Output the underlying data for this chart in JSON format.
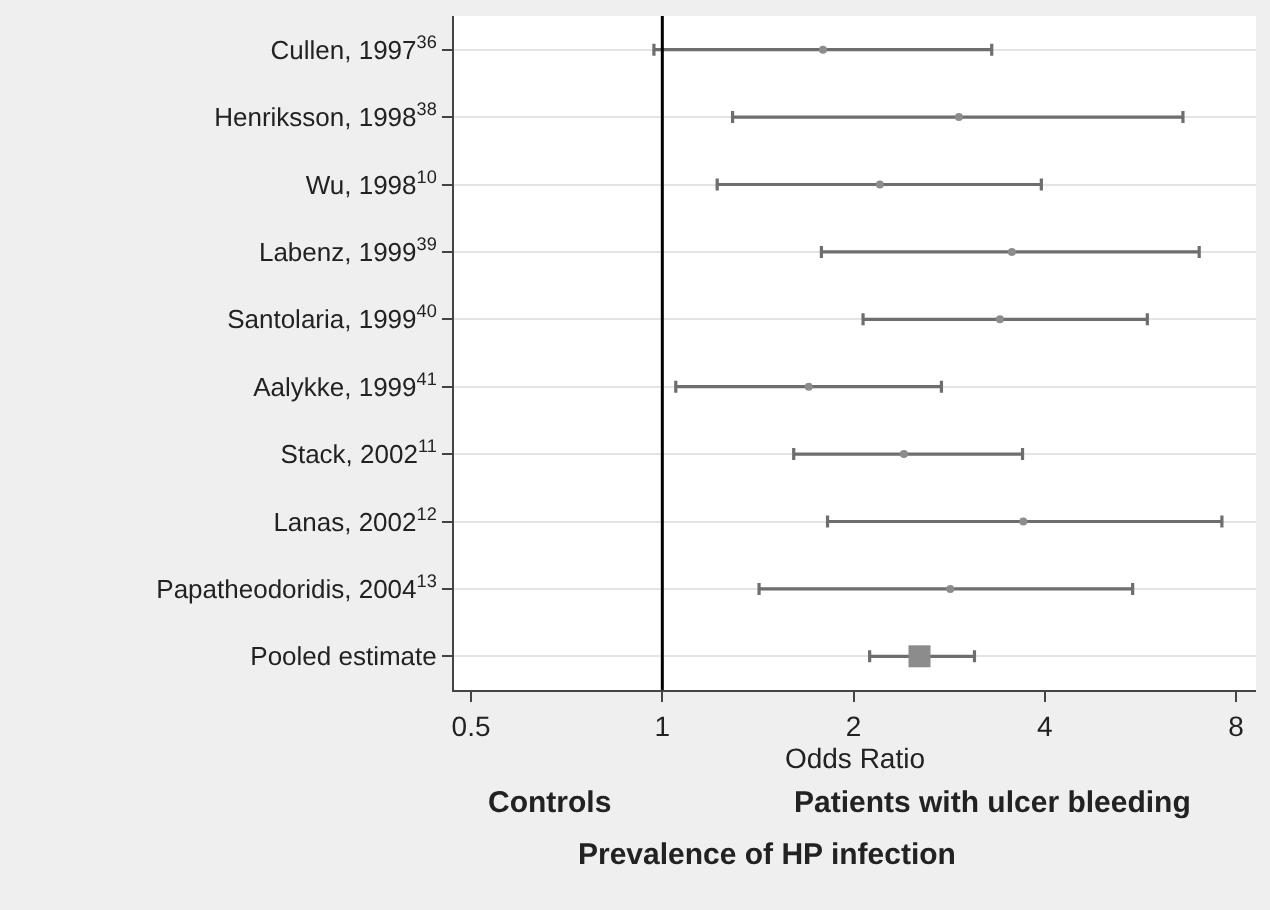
{
  "chart_data": {
    "type": "scatter",
    "orientation": "horizontal",
    "categories": [
      "Cullen, 1997$^{36}$",
      "Henriksson, 1998$^{38}$",
      "Wu, 1998$^{10}$",
      "Labenz, 1999$^{39}$",
      "Santolaria, 1999$^{40}$",
      "Aalykke, 1999$^{41}$",
      "Stack, 2002$^{11}$",
      "Lanas, 2002$^{12}$",
      "Papatheodoridis, 2004$^{13}$",
      "Pooled estimate"
    ],
    "series": [
      {
        "color": "#8c8c8c",
        "marker": "circle",
        "values": [
          1.79,
          2.93,
          2.2,
          3.55,
          3.4,
          1.7,
          2.4,
          3.7,
          2.84,
          null
        ],
        "errors": [
          [
            0.97,
            3.3
          ],
          [
            1.29,
            6.6
          ],
          [
            1.22,
            3.95
          ],
          [
            1.78,
            7.0
          ],
          [
            2.07,
            5.8
          ],
          [
            1.05,
            2.75
          ],
          [
            1.61,
            3.69
          ],
          [
            1.82,
            7.6
          ],
          [
            1.42,
            5.5
          ],
          null
        ]
      },
      {
        "color": "#8c8c8c",
        "marker": "square",
        "values": [
          null,
          null,
          null,
          null,
          null,
          null,
          null,
          null,
          null,
          2.54
        ],
        "errors": [
          null,
          null,
          null,
          null,
          null,
          null,
          null,
          null,
          null,
          [
            2.12,
            3.1
          ]
        ]
      }
    ],
    "log": "x",
    "xlim": [
      0.47,
      8.6
    ],
    "xticks": [
      0.5,
      1,
      2,
      4,
      8
    ],
    "xlabel": "Odds Ratio",
    "ref_lines": [
      {
        "axis": "x",
        "value": 1,
        "color": "#000000"
      }
    ],
    "grid": "y",
    "annotations": [
      "Controls",
      "Patients with ulcer bleeding",
      "Prevalence of HP infection"
    ]
  }
}
